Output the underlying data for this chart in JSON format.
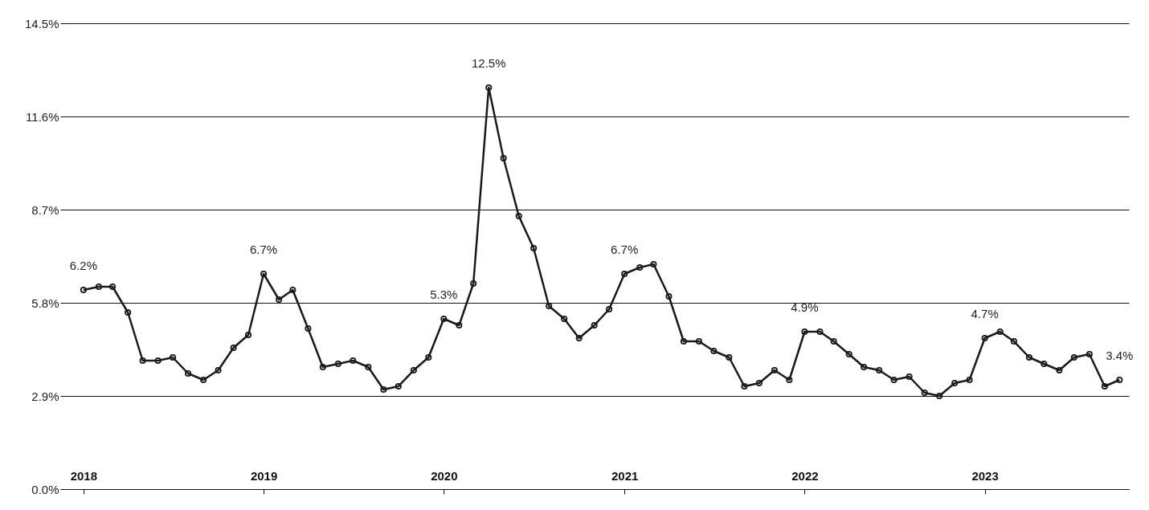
{
  "chart_data": {
    "type": "line",
    "x": [
      "2018-01",
      "2018-02",
      "2018-03",
      "2018-04",
      "2018-05",
      "2018-06",
      "2018-07",
      "2018-08",
      "2018-09",
      "2018-10",
      "2018-11",
      "2018-12",
      "2019-01",
      "2019-02",
      "2019-03",
      "2019-04",
      "2019-05",
      "2019-06",
      "2019-07",
      "2019-08",
      "2019-09",
      "2019-10",
      "2019-11",
      "2019-12",
      "2020-01",
      "2020-02",
      "2020-03",
      "2020-04",
      "2020-05",
      "2020-06",
      "2020-07",
      "2020-08",
      "2020-09",
      "2020-10",
      "2020-11",
      "2020-12",
      "2021-01",
      "2021-02",
      "2021-03",
      "2021-04",
      "2021-05",
      "2021-06",
      "2021-07",
      "2021-08",
      "2021-09",
      "2021-10",
      "2021-11",
      "2021-12",
      "2022-01",
      "2022-02",
      "2022-03",
      "2022-04",
      "2022-05",
      "2022-06",
      "2022-07",
      "2022-08",
      "2022-09",
      "2022-10",
      "2022-11",
      "2022-12",
      "2023-01",
      "2023-02",
      "2023-03",
      "2023-04",
      "2023-05",
      "2023-06",
      "2023-07",
      "2023-08",
      "2023-09",
      "2023-10"
    ],
    "series": [
      {
        "color": "#1a1a1a",
        "values": [
          6.2,
          6.3,
          6.3,
          5.5,
          4.0,
          4.0,
          4.1,
          3.6,
          3.4,
          3.7,
          4.4,
          4.8,
          6.7,
          5.9,
          6.2,
          5.0,
          3.8,
          3.9,
          4.0,
          3.8,
          3.1,
          3.2,
          3.7,
          4.1,
          5.3,
          5.1,
          6.4,
          12.5,
          10.3,
          8.5,
          7.5,
          5.7,
          5.3,
          4.7,
          5.1,
          5.6,
          6.7,
          6.9,
          7.0,
          6.0,
          4.6,
          4.6,
          4.3,
          4.1,
          3.2,
          3.3,
          3.7,
          3.4,
          4.9,
          4.9,
          4.6,
          4.2,
          3.8,
          3.7,
          3.4,
          3.5,
          3.0,
          2.9,
          3.3,
          3.4,
          4.7,
          4.9,
          4.6,
          4.1,
          3.9,
          3.7,
          4.1,
          4.2,
          3.2,
          3.4
        ],
        "value_labels": [
          "6.2%",
          null,
          null,
          null,
          null,
          null,
          null,
          null,
          null,
          null,
          null,
          null,
          "6.7%",
          null,
          null,
          null,
          null,
          null,
          null,
          null,
          null,
          null,
          null,
          null,
          "5.3%",
          null,
          null,
          "12.5%",
          null,
          null,
          null,
          null,
          null,
          null,
          null,
          null,
          "6.7%",
          null,
          null,
          null,
          null,
          null,
          null,
          null,
          null,
          null,
          null,
          null,
          "4.9%",
          null,
          null,
          null,
          null,
          null,
          null,
          null,
          null,
          null,
          null,
          null,
          "4.7%",
          null,
          null,
          null,
          null,
          null,
          null,
          null,
          null,
          "3.4%"
        ]
      }
    ],
    "xlim": [
      "2017-11-15",
      "2023-10-20"
    ],
    "xticks": [
      {
        "value": "2018",
        "label": "2018"
      },
      {
        "value": "2019",
        "label": "2019"
      },
      {
        "value": "2020",
        "label": "2020"
      },
      {
        "value": "2021",
        "label": "2021"
      },
      {
        "value": "2022",
        "label": "2022"
      },
      {
        "value": "2023",
        "label": "2023"
      }
    ],
    "ylim": [
      0,
      14.5
    ],
    "yticks": [
      {
        "value": 0,
        "label": "0.0%"
      },
      {
        "value": 2.9,
        "label": "2.9%"
      },
      {
        "value": 5.8,
        "label": "5.8%"
      },
      {
        "value": 8.7,
        "label": "8.7%"
      },
      {
        "value": 11.6,
        "label": "11.6%"
      },
      {
        "value": 14.5,
        "label": "14.5%"
      }
    ],
    "grid": "y",
    "marker": "circle",
    "line_style": "solid"
  }
}
